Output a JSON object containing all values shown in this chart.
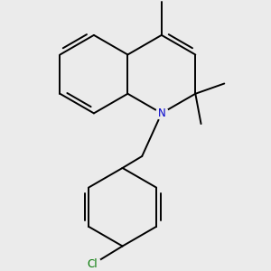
{
  "background_color": "#ebebeb",
  "bond_color": "#000000",
  "N_color": "#0000cc",
  "Cl_color": "#007700",
  "bond_width": 1.4,
  "dpi": 100,
  "figsize": [
    3.0,
    3.0
  ]
}
